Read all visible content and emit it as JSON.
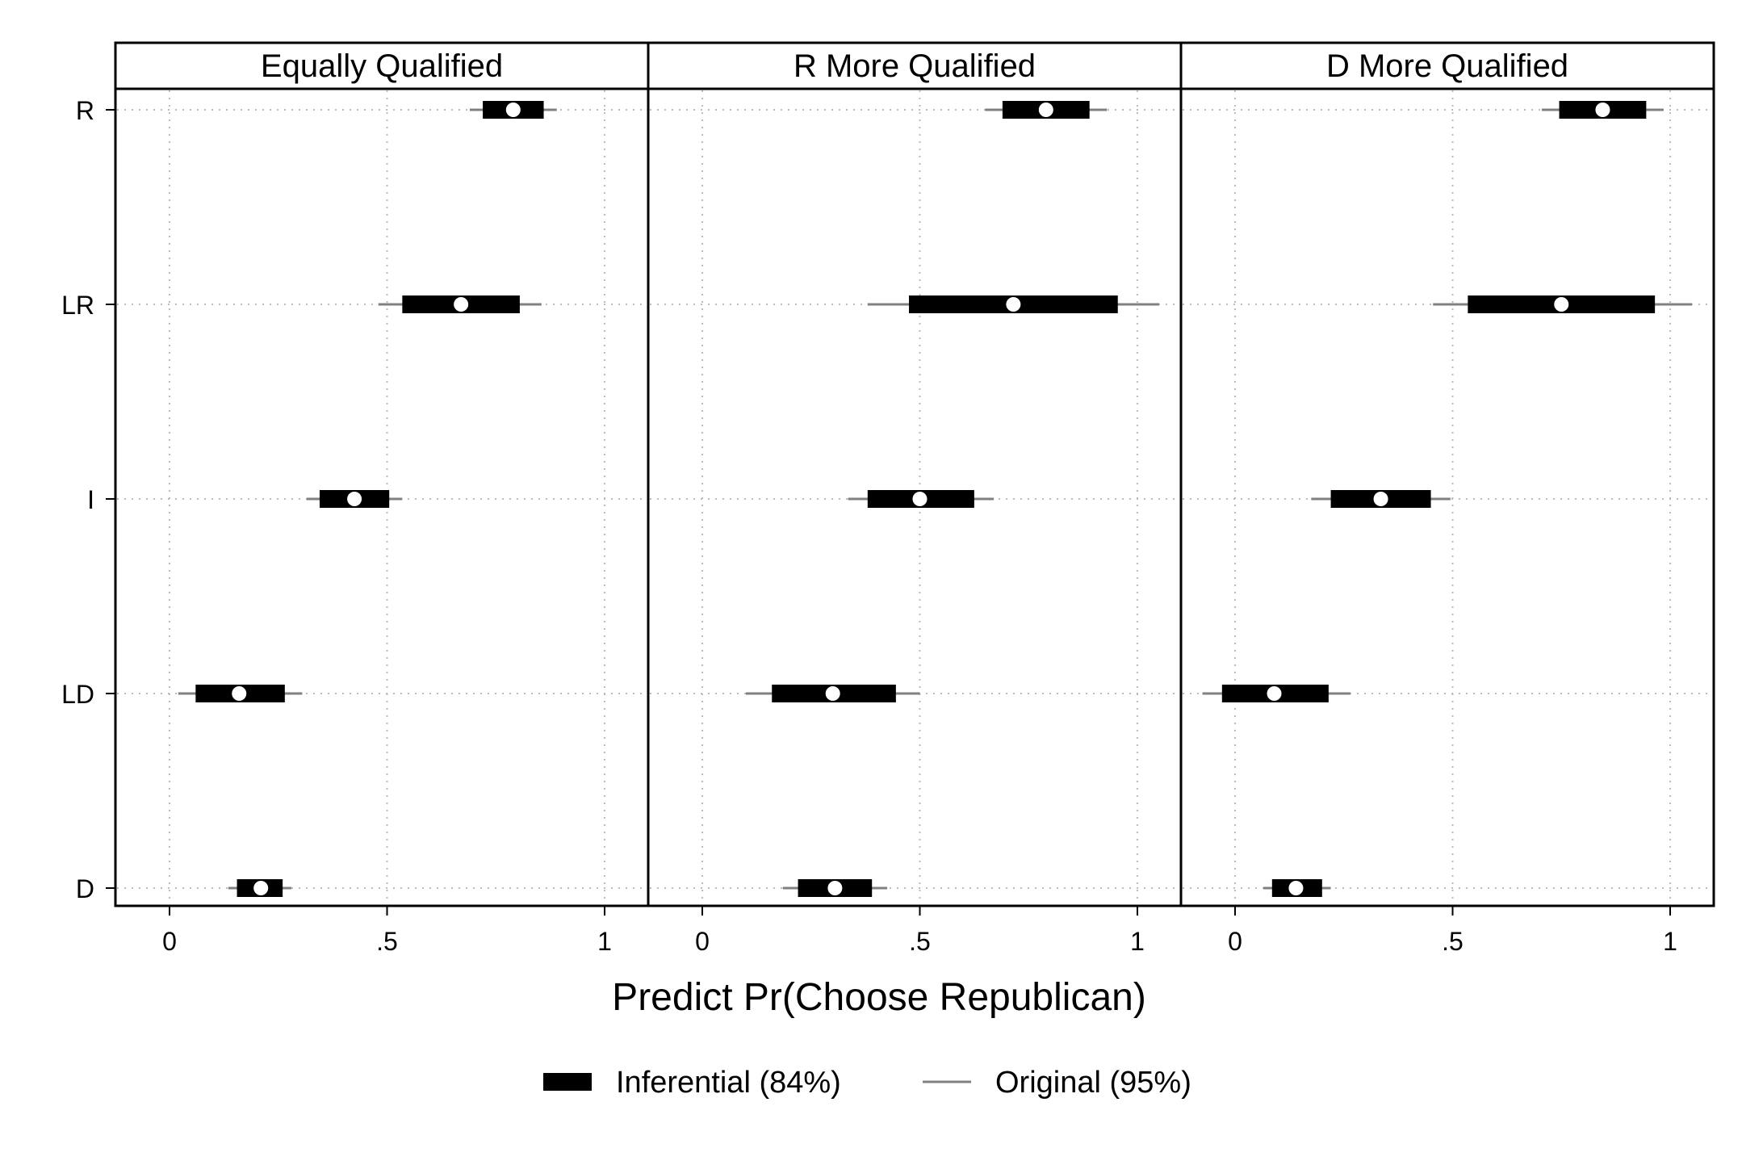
{
  "chart_data": {
    "type": "coefficient-plot",
    "xlabel": "Predict Pr(Choose Republican)",
    "categories": [
      "R",
      "LR",
      "I",
      "LD",
      "D"
    ],
    "x_ticks": [
      {
        "value": 0,
        "label": "0"
      },
      {
        "value": 0.5,
        "label": ".5"
      },
      {
        "value": 1,
        "label": "1"
      }
    ],
    "xlim": [
      -0.125,
      1.1
    ],
    "grid": true,
    "legend_position": "bottom",
    "legend": [
      {
        "key": "inferential",
        "label": "Inferential (84%)"
      },
      {
        "key": "original",
        "label": "Original (95%)"
      }
    ],
    "colors": {
      "inferential": "#000000",
      "original": "#808080",
      "point": "#ffffff",
      "grid": "#bbbbbb"
    },
    "panels": [
      {
        "title": "Equally Qualified",
        "rows": [
          {
            "category": "R",
            "estimate": 0.79,
            "inf_low": 0.72,
            "inf_high": 0.86,
            "orig_low": 0.69,
            "orig_high": 0.89
          },
          {
            "category": "LR",
            "estimate": 0.67,
            "inf_low": 0.535,
            "inf_high": 0.805,
            "orig_low": 0.48,
            "orig_high": 0.855
          },
          {
            "category": "I",
            "estimate": 0.425,
            "inf_low": 0.345,
            "inf_high": 0.505,
            "orig_low": 0.315,
            "orig_high": 0.535
          },
          {
            "category": "LD",
            "estimate": 0.16,
            "inf_low": 0.06,
            "inf_high": 0.265,
            "orig_low": 0.02,
            "orig_high": 0.305
          },
          {
            "category": "D",
            "estimate": 0.21,
            "inf_low": 0.155,
            "inf_high": 0.26,
            "orig_low": 0.135,
            "orig_high": 0.28
          }
        ]
      },
      {
        "title": "R More Qualified",
        "rows": [
          {
            "category": "R",
            "estimate": 0.79,
            "inf_low": 0.69,
            "inf_high": 0.89,
            "orig_low": 0.65,
            "orig_high": 0.93
          },
          {
            "category": "LR",
            "estimate": 0.715,
            "inf_low": 0.475,
            "inf_high": 0.955,
            "orig_low": 0.38,
            "orig_high": 1.05
          },
          {
            "category": "I",
            "estimate": 0.5,
            "inf_low": 0.38,
            "inf_high": 0.625,
            "orig_low": 0.335,
            "orig_high": 0.67
          },
          {
            "category": "LD",
            "estimate": 0.3,
            "inf_low": 0.16,
            "inf_high": 0.445,
            "orig_low": 0.1,
            "orig_high": 0.5
          },
          {
            "category": "D",
            "estimate": 0.305,
            "inf_low": 0.22,
            "inf_high": 0.39,
            "orig_low": 0.185,
            "orig_high": 0.425
          }
        ]
      },
      {
        "title": "D More Qualified",
        "rows": [
          {
            "category": "R",
            "estimate": 0.845,
            "inf_low": 0.745,
            "inf_high": 0.945,
            "orig_low": 0.705,
            "orig_high": 0.985
          },
          {
            "category": "LR",
            "estimate": 0.75,
            "inf_low": 0.535,
            "inf_high": 0.965,
            "orig_low": 0.455,
            "orig_high": 1.05
          },
          {
            "category": "I",
            "estimate": 0.335,
            "inf_low": 0.22,
            "inf_high": 0.45,
            "orig_low": 0.175,
            "orig_high": 0.495
          },
          {
            "category": "LD",
            "estimate": 0.09,
            "inf_low": -0.03,
            "inf_high": 0.215,
            "orig_low": -0.075,
            "orig_high": 0.265
          },
          {
            "category": "D",
            "estimate": 0.14,
            "inf_low": 0.085,
            "inf_high": 0.2,
            "orig_low": 0.065,
            "orig_high": 0.22
          }
        ]
      }
    ]
  }
}
